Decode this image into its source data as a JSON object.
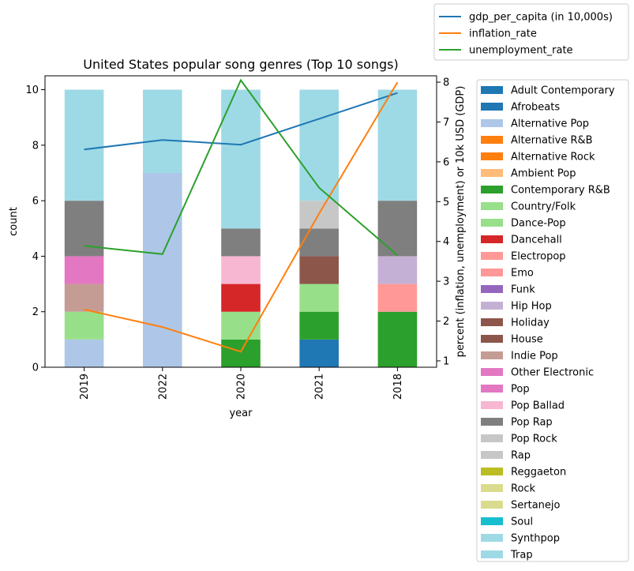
{
  "chart_data": {
    "type": "bar",
    "stacked": true,
    "title": "United States popular song genres (Top 10 songs)",
    "xlabel": "year",
    "ylabel": "count",
    "y2label": "percent (inflation, unemployment) or 10k USD (GDP)",
    "categories": [
      "2019",
      "2022",
      "2020",
      "2021",
      "2018"
    ],
    "ylim": [
      0,
      10.5
    ],
    "yticks": [
      0,
      2,
      4,
      6,
      8,
      10
    ],
    "y2lim": [
      0.84,
      8.16
    ],
    "y2ticks": [
      1,
      2,
      3,
      4,
      5,
      6,
      7,
      8
    ],
    "genres": [
      {
        "name": "Adult Contemporary",
        "color": "#1f77b4"
      },
      {
        "name": "Afrobeats",
        "color": "#1f77b4"
      },
      {
        "name": "Alternative Pop",
        "color": "#aec7e8"
      },
      {
        "name": "Alternative R&B",
        "color": "#ff7f0e"
      },
      {
        "name": "Alternative Rock",
        "color": "#ff7f0e"
      },
      {
        "name": "Ambient Pop",
        "color": "#ffbb78"
      },
      {
        "name": "Contemporary R&B",
        "color": "#2ca02c"
      },
      {
        "name": "Country/Folk",
        "color": "#98df8a"
      },
      {
        "name": "Dance-Pop",
        "color": "#98df8a"
      },
      {
        "name": "Dancehall",
        "color": "#d62728"
      },
      {
        "name": "Electropop",
        "color": "#ff9896"
      },
      {
        "name": "Emo",
        "color": "#ff9896"
      },
      {
        "name": "Funk",
        "color": "#9467bd"
      },
      {
        "name": "Hip Hop",
        "color": "#c5b0d5"
      },
      {
        "name": "Holiday",
        "color": "#8c564b"
      },
      {
        "name": "House",
        "color": "#8c564b"
      },
      {
        "name": "Indie Pop",
        "color": "#c49c94"
      },
      {
        "name": "Other Electronic",
        "color": "#e377c2"
      },
      {
        "name": "Pop",
        "color": "#e377c2"
      },
      {
        "name": "Pop Ballad",
        "color": "#f7b6d2"
      },
      {
        "name": "Pop Rap",
        "color": "#7f7f7f"
      },
      {
        "name": "Pop Rock",
        "color": "#c7c7c7"
      },
      {
        "name": "Rap",
        "color": "#c7c7c7"
      },
      {
        "name": "Reggaeton",
        "color": "#bcbd22"
      },
      {
        "name": "Rock",
        "color": "#dbdb8d"
      },
      {
        "name": "Sertanejo",
        "color": "#dbdb8d"
      },
      {
        "name": "Soul",
        "color": "#17becf"
      },
      {
        "name": "Synthpop",
        "color": "#9edae5"
      },
      {
        "name": "Trap",
        "color": "#9edae5"
      }
    ],
    "stacks": [
      [
        {
          "genre": "Alternative Pop",
          "value": 1
        },
        {
          "genre": "Dance-Pop",
          "value": 1
        },
        {
          "genre": "Indie Pop",
          "value": 1
        },
        {
          "genre": "Pop",
          "value": 1
        },
        {
          "genre": "Pop Rap",
          "value": 2
        },
        {
          "genre": "Trap",
          "value": 4
        }
      ],
      [
        {
          "genre": "Alternative Pop",
          "value": 7
        },
        {
          "genre": "Trap",
          "value": 3
        }
      ],
      [
        {
          "genre": "Contemporary R&B",
          "value": 1
        },
        {
          "genre": "Dance-Pop",
          "value": 1
        },
        {
          "genre": "Dancehall",
          "value": 1
        },
        {
          "genre": "Pop Ballad",
          "value": 1
        },
        {
          "genre": "Pop Rap",
          "value": 1
        },
        {
          "genre": "Trap",
          "value": 5
        }
      ],
      [
        {
          "genre": "Afrobeats",
          "value": 1
        },
        {
          "genre": "Contemporary R&B",
          "value": 1
        },
        {
          "genre": "Dance-Pop",
          "value": 1
        },
        {
          "genre": "House",
          "value": 1
        },
        {
          "genre": "Pop Rap",
          "value": 1
        },
        {
          "genre": "Rap",
          "value": 1
        },
        {
          "genre": "Trap",
          "value": 4
        }
      ],
      [
        {
          "genre": "Contemporary R&B",
          "value": 2
        },
        {
          "genre": "Emo",
          "value": 1
        },
        {
          "genre": "Hip Hop",
          "value": 1
        },
        {
          "genre": "Pop Rap",
          "value": 2
        },
        {
          "genre": "Trap",
          "value": 4
        }
      ]
    ],
    "lines": [
      {
        "name": "gdp_per_capita (in 10,000s)",
        "color": "#1f77b4",
        "values": [
          6.31,
          6.55,
          6.43,
          7.08,
          7.73
        ]
      },
      {
        "name": "inflation_rate",
        "color": "#ff7f0e",
        "values": [
          2.29,
          1.85,
          1.23,
          4.7,
          8.0
        ]
      },
      {
        "name": "unemployment_rate",
        "color": "#2ca02c",
        "values": [
          3.89,
          3.68,
          8.05,
          5.35,
          3.65
        ]
      }
    ]
  }
}
